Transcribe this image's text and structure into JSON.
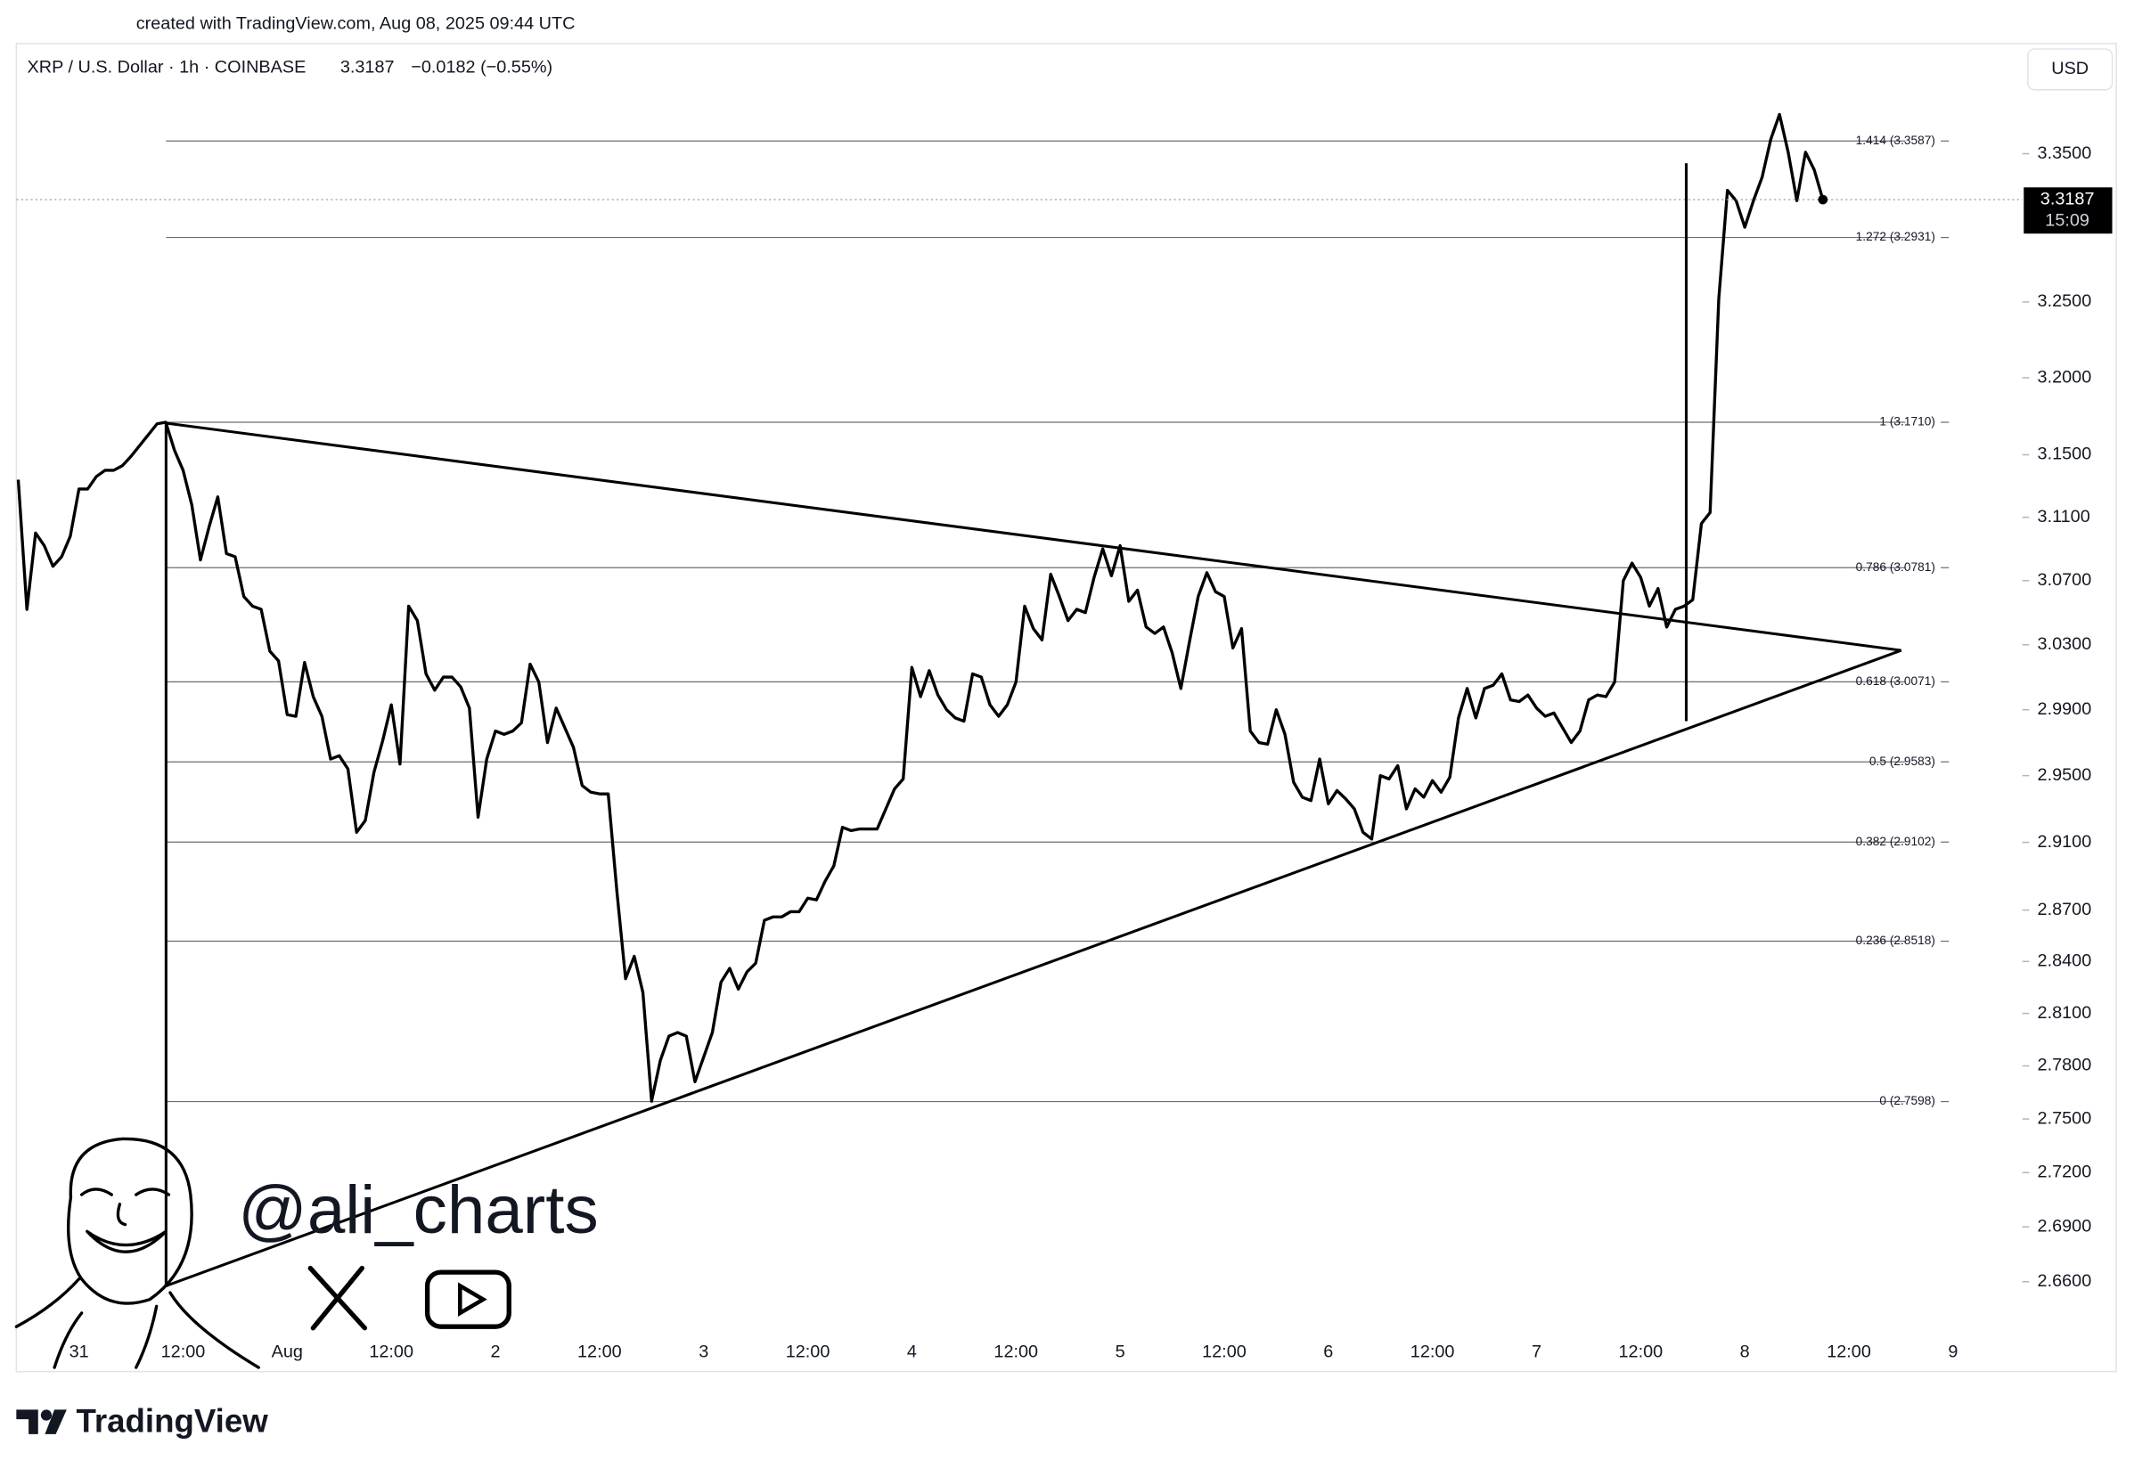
{
  "header": "created with TradingView.com, Aug 08, 2025 09:44 UTC",
  "chart_data": {
    "type": "line",
    "title": "XRP / U.S. Dollar · 1h · COINBASE",
    "change": "−0.0182 (−0.55%)",
    "currency": "USD",
    "countdown": "15:09",
    "log_scale": true,
    "categories": [
      null,
      null,
      null,
      null,
      null,
      null,
      null,
      "31",
      null,
      null,
      null,
      null,
      null,
      null,
      null,
      null,
      null,
      null,
      null,
      "12:00",
      null,
      null,
      null,
      null,
      null,
      null,
      null,
      null,
      null,
      null,
      null,
      "Aug",
      null,
      null,
      null,
      null,
      null,
      null,
      null,
      null,
      null,
      null,
      null,
      "12:00",
      null,
      null,
      null,
      null,
      null,
      null,
      null,
      null,
      null,
      null,
      null,
      "2",
      null,
      null,
      null,
      null,
      null,
      null,
      null,
      null,
      null,
      null,
      null,
      "12:00",
      null,
      null,
      null,
      null,
      null,
      null,
      null,
      null,
      null,
      null,
      null,
      "3",
      null,
      null,
      null,
      null,
      null,
      null,
      null,
      null,
      null,
      null,
      null,
      "12:00",
      null,
      null,
      null,
      null,
      null,
      null,
      null,
      null,
      null,
      null,
      null,
      "4",
      null,
      null,
      null,
      null,
      null,
      null,
      null,
      null,
      null,
      null,
      null,
      "12:00",
      null,
      null,
      null,
      null,
      null,
      null,
      null,
      null,
      null,
      null,
      null,
      "5",
      null,
      null,
      null,
      null,
      null,
      null,
      null,
      null,
      null,
      null,
      null,
      "12:00",
      null,
      null,
      null,
      null,
      null,
      null,
      null,
      null,
      null,
      null,
      null,
      "6",
      null,
      null,
      null,
      null,
      null,
      null,
      null,
      null,
      null,
      null,
      null,
      "12:00",
      null,
      null,
      null,
      null,
      null,
      null,
      null,
      null,
      null,
      null,
      null,
      "7",
      null,
      null,
      null,
      null,
      null,
      null,
      null,
      null,
      null,
      null,
      null,
      "12:00",
      null,
      null,
      null,
      null,
      null,
      null,
      null,
      null,
      null,
      null,
      null,
      "8",
      null,
      null,
      null,
      null,
      null,
      null,
      null,
      null,
      null,
      null,
      null,
      "12:00",
      null,
      null,
      null,
      null,
      null,
      null,
      null,
      null,
      null,
      null,
      null,
      "9",
      null,
      null,
      null,
      null,
      null,
      null,
      null
    ],
    "series": [
      {
        "color": "#000000",
        "values": [
          3.134,
          3.052,
          3.1,
          3.092,
          3.079,
          3.085,
          3.098,
          3.128,
          3.128,
          3.136,
          3.14,
          3.14,
          3.143,
          3.149,
          3.156,
          3.163,
          3.17,
          3.171,
          3.153,
          3.14,
          3.118,
          3.083,
          3.104,
          3.123,
          3.087,
          3.085,
          3.06,
          3.054,
          3.052,
          3.026,
          3.02,
          2.987,
          2.986,
          3.019,
          2.998,
          2.986,
          2.96,
          2.962,
          2.954,
          2.916,
          2.923,
          2.952,
          2.971,
          2.993,
          2.957,
          3.054,
          3.045,
          3.012,
          3.002,
          3.01,
          3.01,
          3.004,
          2.991,
          2.925,
          2.96,
          2.977,
          2.975,
          2.977,
          2.982,
          3.018,
          3.007,
          2.97,
          2.991,
          2.979,
          2.967,
          2.944,
          2.94,
          2.939,
          2.939,
          2.881,
          2.83,
          2.843,
          2.822,
          2.76,
          2.783,
          2.797,
          2.799,
          2.797,
          2.771,
          2.785,
          2.799,
          2.828,
          2.836,
          2.824,
          2.834,
          2.839,
          2.864,
          2.866,
          2.866,
          2.869,
          2.869,
          2.877,
          2.876,
          2.887,
          2.896,
          2.919,
          2.917,
          2.918,
          2.918,
          2.918,
          2.93,
          2.942,
          2.948,
          3.016,
          2.998,
          3.014,
          2.999,
          2.99,
          2.985,
          2.983,
          3.012,
          3.01,
          2.993,
          2.986,
          2.993,
          3.007,
          3.054,
          3.04,
          3.033,
          3.074,
          3.06,
          3.045,
          3.052,
          3.05,
          3.072,
          3.09,
          3.073,
          3.092,
          3.057,
          3.064,
          3.041,
          3.037,
          3.041,
          3.025,
          3.003,
          3.032,
          3.06,
          3.075,
          3.063,
          3.06,
          3.028,
          3.04,
          2.977,
          2.97,
          2.969,
          2.99,
          2.975,
          2.946,
          2.937,
          2.935,
          2.96,
          2.933,
          2.941,
          2.936,
          2.93,
          2.916,
          2.912,
          2.95,
          2.948,
          2.956,
          2.93,
          2.942,
          2.937,
          2.947,
          2.94,
          2.949,
          2.985,
          3.003,
          2.985,
          3.003,
          3.005,
          3.012,
          2.996,
          2.995,
          2.999,
          2.991,
          2.986,
          2.988,
          2.979,
          2.97,
          2.977,
          2.996,
          2.999,
          2.998,
          3.007,
          3.07,
          3.081,
          3.072,
          3.054,
          3.065,
          3.041,
          3.052,
          3.054,
          3.058,
          3.106,
          3.113,
          3.252,
          3.325,
          3.318,
          3.3,
          3.318,
          3.334,
          3.36,
          3.377,
          3.351,
          3.318,
          3.351,
          3.339,
          3.3187,
          null,
          null,
          null,
          null,
          null,
          null,
          null,
          null,
          null,
          null,
          null,
          null,
          null,
          null,
          null,
          null,
          null,
          null,
          null,
          null,
          null,
          null
        ]
      }
    ],
    "ylim": [
      2.632,
      3.4263
    ],
    "yticks": [
      {
        "value": 3.35,
        "label": "3.3500"
      },
      {
        "value": 3.25,
        "label": "3.2500"
      },
      {
        "value": 3.2,
        "label": "3.2000"
      },
      {
        "value": 3.15,
        "label": "3.1500"
      },
      {
        "value": 3.11,
        "label": "3.1100"
      },
      {
        "value": 3.07,
        "label": "3.0700"
      },
      {
        "value": 3.03,
        "label": "3.0300"
      },
      {
        "value": 2.99,
        "label": "2.9900"
      },
      {
        "value": 2.95,
        "label": "2.9500"
      },
      {
        "value": 2.91,
        "label": "2.9100"
      },
      {
        "value": 2.87,
        "label": "2.8700"
      },
      {
        "value": 2.84,
        "label": "2.8400"
      },
      {
        "value": 2.81,
        "label": "2.8100"
      },
      {
        "value": 2.78,
        "label": "2.7800"
      },
      {
        "value": 2.75,
        "label": "2.7500"
      },
      {
        "value": 2.72,
        "label": "2.7200"
      },
      {
        "value": 2.69,
        "label": "2.6900"
      },
      {
        "value": 2.66,
        "label": "2.6600"
      }
    ],
    "fib_levels": [
      {
        "value": 3.3587,
        "label": "1.414 (3.3587)"
      },
      {
        "value": 3.2931,
        "label": "1.272 (3.2931)"
      },
      {
        "value": 3.171,
        "label": "1 (3.1710)"
      },
      {
        "value": 3.0781,
        "label": "0.786 (3.0781)"
      },
      {
        "value": 3.0071,
        "label": "0.618 (3.0071)"
      },
      {
        "value": 2.9583,
        "label": "0.5 (2.9583)"
      },
      {
        "value": 2.9102,
        "label": "0.382 (2.9102)"
      },
      {
        "value": 2.8518,
        "label": "0.236 (2.8518)"
      },
      {
        "value": 2.7598,
        "label": "0 (2.7598)"
      }
    ]
  },
  "watermark": "@ali_charts",
  "brand": "TradingView"
}
